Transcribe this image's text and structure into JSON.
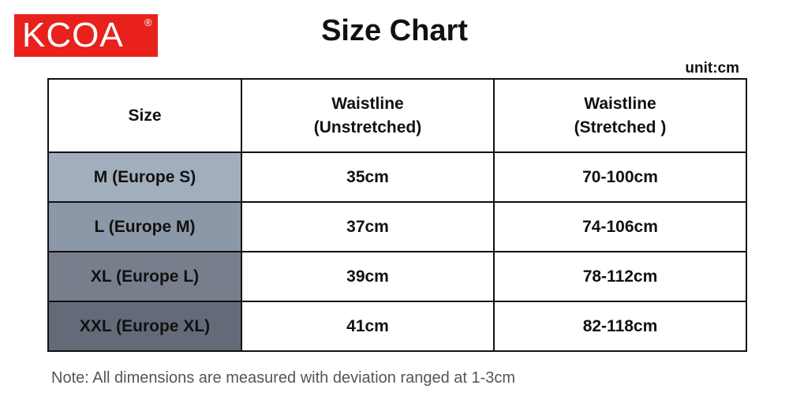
{
  "logo": {
    "text": "KCOA",
    "mark": "®"
  },
  "header": {
    "title": "Size Chart",
    "unit": "unit:cm"
  },
  "table": {
    "columns": [
      [
        "Size"
      ],
      [
        "Waistline",
        "(Unstretched)"
      ],
      [
        "Waistline",
        "(Stretched )"
      ]
    ],
    "rows": [
      [
        "M  (Europe S)",
        "35cm",
        "70-100cm"
      ],
      [
        "L  (Europe M)",
        "37cm",
        "74-106cm"
      ],
      [
        "XL  (Europe L)",
        "39cm",
        "78-112cm"
      ],
      [
        "XXL  (Europe XL)",
        "41cm",
        "82-118cm"
      ]
    ]
  },
  "note": "Note: All dimensions are measured with deviation ranged at 1-3cm"
}
